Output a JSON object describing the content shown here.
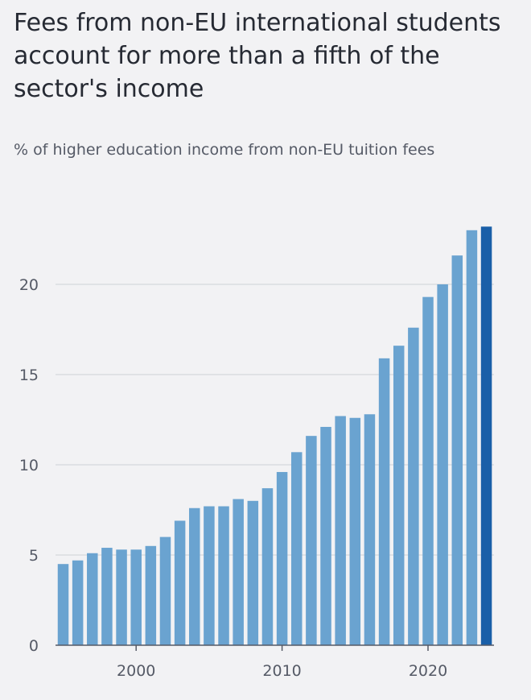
{
  "title": "Fees from non-EU international students account for more than a fifth of the sector's income",
  "subtitle": "% of higher education income from non-EU tuition fees",
  "colors": {
    "bar": "#6aa3d0",
    "bar_highlight": "#1a5fa8",
    "grid": "#d6d8dc",
    "axis": "#555a66",
    "background": "#f2f2f4"
  },
  "chart_data": {
    "type": "bar",
    "title": "Fees from non-EU international students account for more than a fifth of the sector's income",
    "subtitle": "% of higher education income from non-EU tuition fees",
    "xlabel": "",
    "ylabel": "",
    "x": [
      1995,
      1996,
      1997,
      1998,
      1999,
      2000,
      2001,
      2002,
      2003,
      2004,
      2005,
      2006,
      2007,
      2008,
      2009,
      2010,
      2011,
      2012,
      2013,
      2014,
      2015,
      2016,
      2017,
      2018,
      2019,
      2020,
      2021,
      2022,
      2023,
      2024
    ],
    "values": [
      4.5,
      4.7,
      5.1,
      5.4,
      5.3,
      5.3,
      5.5,
      6.0,
      6.9,
      7.6,
      7.7,
      7.7,
      8.1,
      8.0,
      8.7,
      9.6,
      10.7,
      11.6,
      12.1,
      12.7,
      12.6,
      12.8,
      15.9,
      16.6,
      17.6,
      19.3,
      20.0,
      21.6,
      23.0,
      23.2
    ],
    "highlight_last": true,
    "ylim": [
      0,
      24
    ],
    "y_ticks": [
      0,
      5,
      10,
      15,
      20
    ],
    "x_ticks": [
      2000,
      2010,
      2020
    ],
    "grid": true,
    "legend": "none"
  }
}
